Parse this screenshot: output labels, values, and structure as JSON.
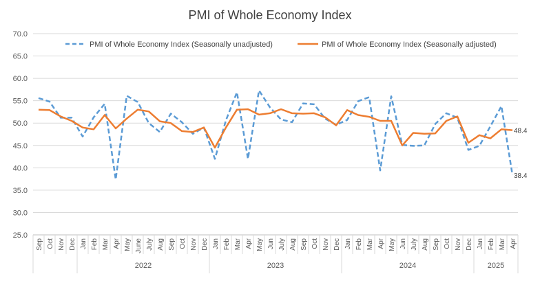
{
  "chart_data": {
    "type": "line",
    "title": "PMI of Whole Economy Index",
    "ylim": [
      25,
      70
    ],
    "yticks": [
      "25.0",
      "30.0",
      "35.0",
      "40.0",
      "45.0",
      "50.0",
      "55.0",
      "60.0",
      "65.0",
      "70.0"
    ],
    "grid": true,
    "legend_position": "top",
    "months": [
      "Sep",
      "Oct",
      "Nov",
      "Dec",
      "Jan",
      "Feb",
      "Mar",
      "Apr",
      "May",
      "June",
      "July",
      "Aug",
      "Sep",
      "Oct",
      "Nov",
      "Dec",
      "Jan",
      "Feb",
      "Mar",
      "Apr",
      "May",
      "Jun",
      "July",
      "Aug",
      "Sep",
      "Oct",
      "Nov",
      "Dec",
      "Jan",
      "Feb",
      "Mar",
      "Apr",
      "May",
      "Jun",
      "July",
      "Aug",
      "Sep",
      "Oct",
      "Nov",
      "Dec",
      "Jan",
      "Feb",
      "Mar",
      "Apr"
    ],
    "years": [
      {
        "label": "2022",
        "start": 4,
        "end": 15
      },
      {
        "label": "2023",
        "start": 16,
        "end": 27
      },
      {
        "label": "2024",
        "start": 28,
        "end": 39
      },
      {
        "label": "2025",
        "start": 40,
        "end": 43
      }
    ],
    "series": [
      {
        "name": "PMI of Whole Economy Index (Seasonally unadjusted)",
        "color": "#5b9bd5",
        "dash": true,
        "values": [
          55.6,
          54.8,
          51.2,
          51.2,
          47.0,
          51.3,
          54.3,
          37.4,
          56.1,
          54.7,
          50.0,
          48.0,
          52.1,
          50.2,
          47.6,
          49.0,
          42.0,
          50.6,
          56.9,
          42.0,
          57.3,
          53.5,
          50.8,
          50.2,
          54.4,
          54.2,
          51.0,
          49.6,
          50.7,
          54.9,
          55.8,
          39.4,
          56.0,
          45.1,
          44.9,
          45.0,
          49.8,
          52.2,
          51.2,
          44.0,
          44.9,
          49.3,
          53.8,
          38.4
        ],
        "end_label": "38.4"
      },
      {
        "name": "PMI of Whole Economy Index (Seasonally adjusted)",
        "color": "#ed7d31",
        "dash": false,
        "values": [
          53.0,
          52.9,
          51.5,
          50.5,
          49.0,
          48.6,
          51.8,
          48.8,
          51.0,
          53.0,
          52.6,
          50.4,
          50.0,
          48.2,
          48.0,
          49.0,
          44.5,
          49.0,
          53.0,
          53.1,
          51.9,
          52.2,
          53.1,
          52.2,
          52.1,
          52.2,
          51.3,
          49.5,
          52.9,
          51.8,
          51.4,
          50.5,
          50.5,
          45.0,
          47.8,
          47.6,
          47.7,
          50.5,
          51.5,
          45.6,
          47.3,
          46.6,
          48.6,
          48.4
        ],
        "end_label": "48.4"
      }
    ]
  }
}
